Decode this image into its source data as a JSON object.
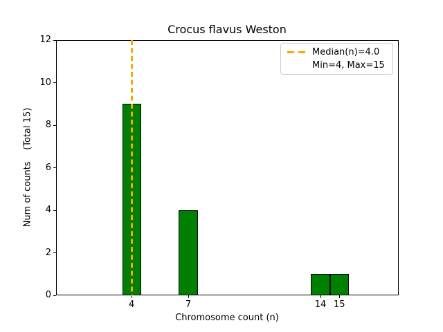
{
  "figure": {
    "background": "#ffffff"
  },
  "chart_data": {
    "type": "bar",
    "title": "Crocus flavus Weston",
    "xlabel": "Chromosome count (n)",
    "ylabel": "Num of counts    (Total 15)",
    "x": [
      4,
      7,
      14,
      15
    ],
    "values": [
      9,
      4,
      1,
      1
    ],
    "bar_width": 1.0,
    "xticks": [
      "4",
      "7",
      "14",
      "15"
    ],
    "xtick_values": [
      4,
      7,
      14,
      15
    ],
    "yticks": [
      "0",
      "2",
      "4",
      "6",
      "8",
      "10",
      "12"
    ],
    "ytick_values": [
      0,
      2,
      4,
      6,
      8,
      10,
      12
    ],
    "xlim": [
      0,
      18.14
    ],
    "ylim": [
      0,
      12
    ],
    "grid": false,
    "median": 4.0,
    "colors": {
      "bar_fill": "#008000",
      "bar_edge": "#000000",
      "median_line": "#FFA500",
      "axes": "#000000",
      "legend_border": "#cccccc"
    },
    "legend": {
      "position": "upper-right",
      "entries": [
        {
          "label": "Median(n)=4.0",
          "handle": "dashed-line",
          "handle_color": "#FFA500"
        },
        {
          "label": "Min=4, Max=15",
          "handle": "none"
        }
      ]
    }
  }
}
